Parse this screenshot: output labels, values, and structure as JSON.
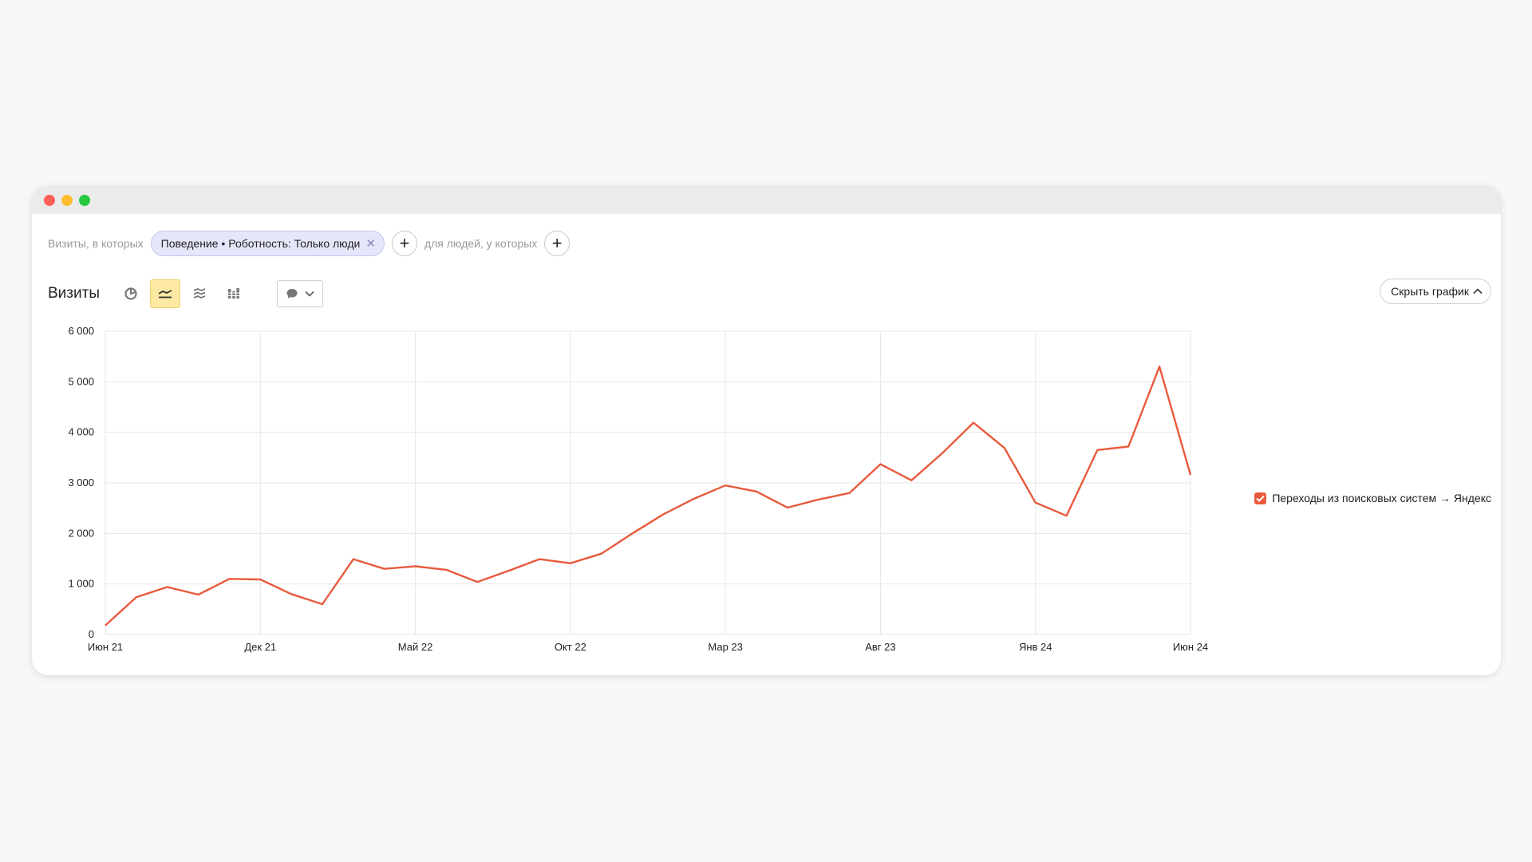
{
  "filters": {
    "prefix": "Визиты, в которых",
    "chip_label": "Поведение • Роботность: Только люди",
    "people_label": "для людей, у которых"
  },
  "toolbar": {
    "title": "Визиты",
    "tools": [
      "pie-chart-icon",
      "line-chart-icon",
      "stacked-area-icon",
      "stacked-bar-icon"
    ],
    "active_tool": "line-chart-icon",
    "hide_chart_label": "Скрыть график"
  },
  "colors": {
    "series": "#e85a3c",
    "grid": "#e6e6e6",
    "active_tool_bg": "#fde9a2",
    "chip_bg": "#e6e6fb"
  },
  "chart_data": {
    "type": "line",
    "title": "",
    "xlabel": "",
    "ylabel": "",
    "ylim": [
      0,
      6000
    ],
    "y_ticks": [
      0,
      1000,
      2000,
      3000,
      4000,
      5000,
      6000
    ],
    "y_tick_labels": [
      "0",
      "1 000",
      "2 000",
      "3 000",
      "4 000",
      "5 000",
      "6 000"
    ],
    "x_tick_labels": [
      "Июн 21",
      "Дек 21",
      "Май 22",
      "Окт 22",
      "Мар 23",
      "Авг 23",
      "Янв 24",
      "Июн 24"
    ],
    "x_tick_indices": [
      0,
      5,
      10,
      15,
      20,
      25,
      30,
      35
    ],
    "grid": true,
    "legend_position": "right",
    "series": [
      {
        "name": "Переходы из поисковых систем → Яндекс",
        "values": [
          180,
          740,
          940,
          790,
          1100,
          1090,
          800,
          600,
          1490,
          1300,
          1350,
          1280,
          1040,
          1260,
          1490,
          1410,
          1600,
          2000,
          2380,
          2690,
          2950,
          2830,
          2510,
          2670,
          2800,
          3370,
          3050,
          3590,
          4190,
          3690,
          2610,
          2350,
          3650,
          3720,
          5300,
          3160
        ]
      }
    ]
  }
}
